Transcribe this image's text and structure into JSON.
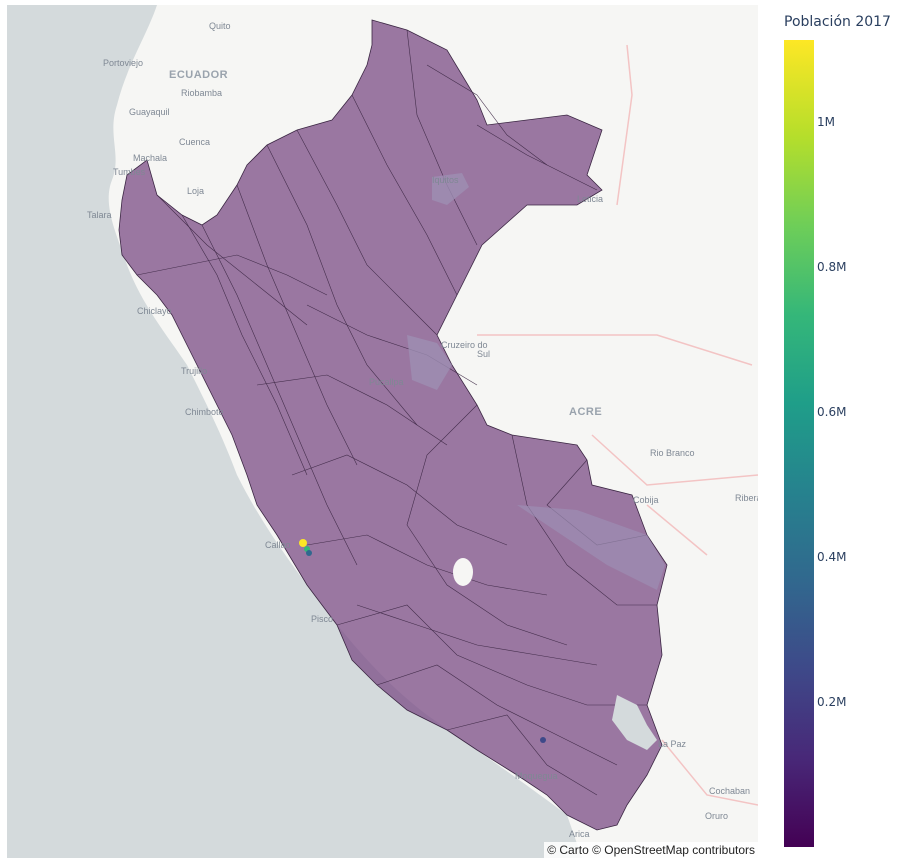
{
  "colorbar": {
    "title": "Población 2017",
    "ticks": [
      "0.2M",
      "0.4M",
      "0.6M",
      "0.8M",
      "1M"
    ],
    "tick_values": [
      200000,
      400000,
      600000,
      800000,
      1000000
    ],
    "range": [
      0,
      1130000
    ],
    "colorscale": "viridis"
  },
  "map": {
    "attribution": "© Carto © OpenStreetMap contributors",
    "country_fill": "#7b4c86",
    "ocean_color": "#d4dadc",
    "labels": {
      "ecuador": "ECUADOR",
      "acre": "ACRE",
      "quito": "Quito",
      "portoviejo": "Portoviejo",
      "riobamba": "Riobamba",
      "guayaquil": "Guayaquil",
      "cuenca": "Cuenca",
      "machala": "Machala",
      "tumbes": "Tumbes",
      "loja": "Loja",
      "talara": "Talara",
      "iquitos": "Iquitos",
      "leticia": "Leticia",
      "chiclayo": "Chiclayo",
      "cruzeiro": "Cruzeiro do",
      "cruzeiro2": "Sul",
      "trujillo": "Trujillo",
      "chimbote": "Chimbote",
      "pucallpa": "Pucallpa",
      "rio_branco": "Rio Branco",
      "cobija": "Cobija",
      "riberalta": "Ribera",
      "callao": "Callao",
      "pisco": "Pisco",
      "la_paz": "La Paz",
      "moquegua": "Moquegua",
      "cochabamba": "Cochaban",
      "oruro": "Oruro",
      "arica": "Arica"
    }
  }
}
